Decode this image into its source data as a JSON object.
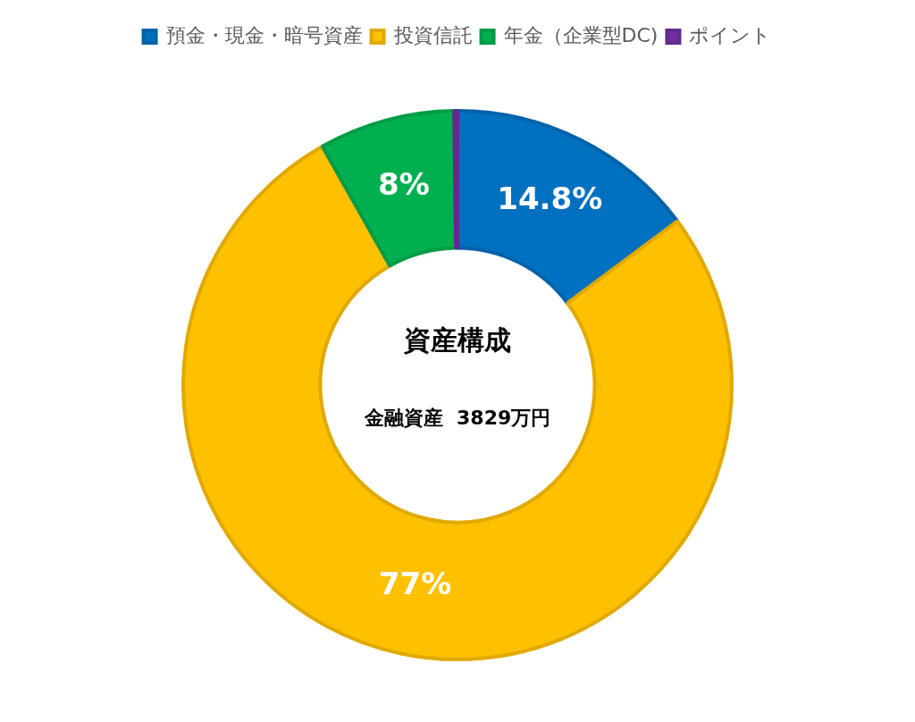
{
  "chart_data": {
    "type": "donut",
    "title": "資産構成",
    "subtitle": "金融資産  3829万円",
    "categories": [
      "預金・現金・暗号資産",
      "投資信託",
      "年金（企業型DC)",
      "ポイント"
    ],
    "values": [
      14.8,
      77,
      8,
      0.2
    ],
    "value_labels": [
      "14.8%",
      "77%",
      "8%",
      null
    ],
    "colors": [
      "#0070c0",
      "#ffc000",
      "#00b050",
      "#7030a0"
    ],
    "legend": "top"
  }
}
